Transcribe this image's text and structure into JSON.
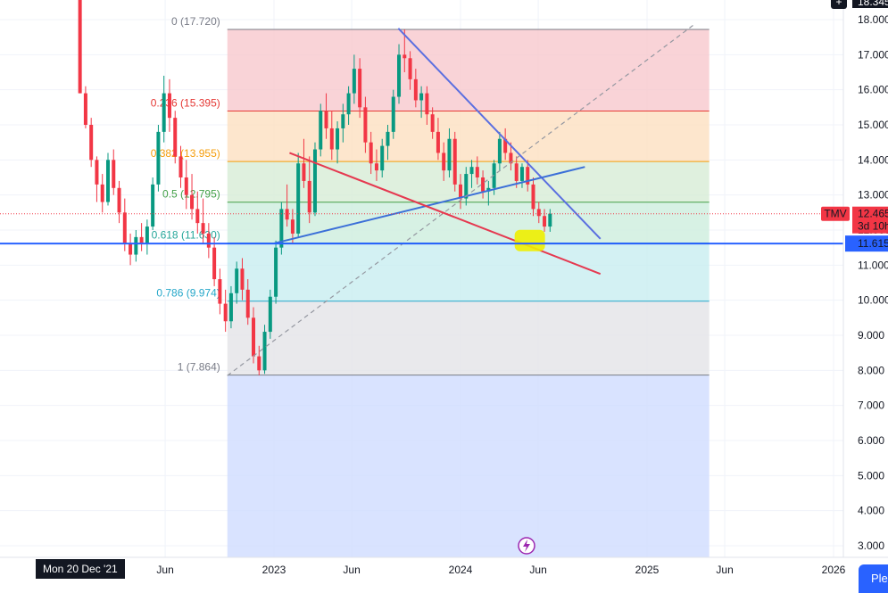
{
  "chart_data": {
    "type": "candlestick",
    "symbol": "TMV",
    "interval_badge": "3d 10h",
    "last_price": "12.465",
    "hline_price": "11.615",
    "top_price_badge": "18.345",
    "y_ticks": [
      "18.000",
      "17.000",
      "16.000",
      "15.000",
      "14.000",
      "13.000",
      "12.000",
      "11.000",
      "10.000",
      "9.000",
      "8.000",
      "7.000",
      "6.000",
      "5.000",
      "4.000",
      "3.000"
    ],
    "y_tick_values": [
      18,
      17,
      16,
      15,
      14,
      13,
      12,
      11,
      10,
      9,
      8,
      7,
      6,
      5,
      4,
      3
    ],
    "x_ticks": [
      "Jun",
      "2023",
      "Jun",
      "2024",
      "Jun",
      "2025",
      "Jun",
      "2026"
    ],
    "x_tick_values": [
      "2022-06",
      "2023-01",
      "2023-06",
      "2024-01",
      "2024-06",
      "2025-01",
      "2025-06",
      "2026-01"
    ],
    "date_badge": "Mon 20 Dec '21",
    "fib_levels": [
      {
        "label": "0 (17.720)",
        "ratio": 0,
        "price": 17.72,
        "color": "#787b86",
        "fill": "#f8c8cd"
      },
      {
        "label": "0.236 (15.395)",
        "ratio": 0.236,
        "price": 15.395,
        "color": "#e53935",
        "fill": "#fde0c0"
      },
      {
        "label": "0.382 (13.955)",
        "ratio": 0.382,
        "price": 13.955,
        "color": "#f59d0b",
        "fill": "#d7ecd6"
      },
      {
        "label": "0.5 (12.795)",
        "ratio": 0.5,
        "price": 12.795,
        "color": "#43a047",
        "fill": "#cdeedd"
      },
      {
        "label": "0.618 (11.630)",
        "ratio": 0.618,
        "price": 11.63,
        "color": "#26a69a",
        "fill": "#c8eef0"
      },
      {
        "label": "0.786 (9.974)",
        "ratio": 0.786,
        "price": 9.974,
        "color": "#26a7c9",
        "fill": "#e3e4e7"
      },
      {
        "label": "1 (7.864)",
        "ratio": 1,
        "price": 7.864,
        "color": "#787b86",
        "fill": "#cfdcff"
      }
    ],
    "fib_range": {
      "start": "2022-10",
      "end": "2025-05"
    },
    "trendlines": [
      {
        "name": "",
        "color": "#5b6fe0",
        "from": {
          "date": "2023-09",
          "price": 17.75
        },
        "to": {
          "date": "2024-10",
          "price": 11.75
        }
      },
      {
        "name": "",
        "color": "#3b6fd8",
        "from": {
          "date": "2023-01",
          "price": 11.62
        },
        "to": {
          "date": "2024-09",
          "price": 13.8
        }
      },
      {
        "name": "",
        "color": "#e53950",
        "from": {
          "date": "2023-02",
          "price": 14.2
        },
        "to": {
          "date": "2024-10",
          "price": 10.75
        }
      },
      {
        "name": "",
        "color": "#9598a1",
        "from": {
          "date": "2022-10",
          "price": 7.85
        },
        "to": {
          "date": "2025-04",
          "price": 17.85
        }
      }
    ],
    "highlight": {
      "date": "2024-05",
      "price": 11.65,
      "color": "#eeee00"
    },
    "candles": [
      [
        2021.96,
        18.6,
        18.6,
        15.9,
        15.9
      ],
      [
        2021.99,
        15.9,
        16.1,
        14.9,
        15.0
      ],
      [
        2022.02,
        15.0,
        15.2,
        13.8,
        14.0
      ],
      [
        2022.05,
        14.0,
        14.1,
        12.8,
        13.3
      ],
      [
        2022.08,
        13.3,
        13.6,
        12.5,
        12.8
      ],
      [
        2022.11,
        12.8,
        14.2,
        12.7,
        14.0
      ],
      [
        2022.14,
        14.0,
        14.3,
        13.0,
        13.2
      ],
      [
        2022.17,
        13.2,
        13.4,
        12.2,
        12.5
      ],
      [
        2022.2,
        12.5,
        12.9,
        11.4,
        11.6
      ],
      [
        2022.23,
        11.6,
        11.9,
        11.0,
        11.3
      ],
      [
        2022.26,
        11.3,
        12.0,
        11.1,
        11.8
      ],
      [
        2022.29,
        11.8,
        12.2,
        11.4,
        11.6
      ],
      [
        2022.32,
        11.6,
        12.3,
        11.3,
        12.1
      ],
      [
        2022.35,
        12.1,
        13.5,
        12.0,
        13.3
      ],
      [
        2022.38,
        13.3,
        15.0,
        13.1,
        14.8
      ],
      [
        2022.41,
        14.8,
        16.4,
        14.5,
        15.9
      ],
      [
        2022.44,
        15.9,
        16.3,
        14.8,
        15.2
      ],
      [
        2022.47,
        15.2,
        15.4,
        13.9,
        14.1
      ],
      [
        2022.5,
        14.1,
        14.4,
        13.2,
        13.5
      ],
      [
        2022.53,
        13.5,
        14.0,
        12.6,
        13.0
      ],
      [
        2022.56,
        13.0,
        13.6,
        12.3,
        12.6
      ],
      [
        2022.59,
        12.6,
        13.1,
        11.9,
        12.2
      ],
      [
        2022.62,
        12.2,
        12.9,
        11.6,
        11.9
      ],
      [
        2022.65,
        11.9,
        12.2,
        11.2,
        11.5
      ],
      [
        2022.68,
        11.5,
        11.8,
        10.4,
        10.6
      ],
      [
        2022.71,
        10.6,
        10.9,
        9.6,
        9.9
      ],
      [
        2022.74,
        9.9,
        10.3,
        9.1,
        9.4
      ],
      [
        2022.77,
        9.4,
        10.4,
        9.2,
        10.2
      ],
      [
        2022.8,
        10.2,
        11.1,
        9.9,
        10.9
      ],
      [
        2022.83,
        10.9,
        11.2,
        10.0,
        10.3
      ],
      [
        2022.86,
        10.3,
        10.6,
        9.3,
        9.5
      ],
      [
        2022.89,
        9.5,
        9.8,
        8.2,
        8.4
      ],
      [
        2022.92,
        8.4,
        8.7,
        7.86,
        8.0
      ],
      [
        2022.95,
        8.0,
        9.3,
        7.9,
        9.1
      ],
      [
        2022.98,
        9.1,
        10.3,
        8.9,
        10.1
      ],
      [
        2023.01,
        10.1,
        11.7,
        9.9,
        11.5
      ],
      [
        2023.04,
        11.5,
        12.8,
        11.3,
        12.6
      ],
      [
        2023.07,
        12.6,
        13.3,
        12.1,
        12.3
      ],
      [
        2023.1,
        12.3,
        12.6,
        11.6,
        11.9
      ],
      [
        2023.13,
        11.9,
        14.2,
        11.8,
        13.9
      ],
      [
        2023.16,
        13.9,
        14.6,
        13.2,
        13.4
      ],
      [
        2023.19,
        13.4,
        14.1,
        12.2,
        12.5
      ],
      [
        2023.22,
        12.5,
        14.5,
        12.4,
        14.3
      ],
      [
        2023.25,
        14.3,
        15.6,
        14.1,
        15.4
      ],
      [
        2023.28,
        15.4,
        15.9,
        14.6,
        14.9
      ],
      [
        2023.31,
        14.9,
        15.4,
        14.0,
        14.3
      ],
      [
        2023.34,
        14.3,
        15.1,
        13.9,
        14.9
      ],
      [
        2023.37,
        14.9,
        15.6,
        14.5,
        15.3
      ],
      [
        2023.4,
        15.3,
        16.1,
        15.0,
        15.9
      ],
      [
        2023.43,
        15.9,
        17.0,
        15.6,
        16.6
      ],
      [
        2023.46,
        16.6,
        16.9,
        15.2,
        15.5
      ],
      [
        2023.49,
        15.5,
        15.8,
        14.2,
        14.5
      ],
      [
        2023.52,
        14.5,
        14.8,
        13.6,
        13.9
      ],
      [
        2023.55,
        13.9,
        14.3,
        13.4,
        13.7
      ],
      [
        2023.58,
        13.7,
        14.6,
        13.5,
        14.4
      ],
      [
        2023.61,
        14.4,
        15.0,
        14.0,
        14.8
      ],
      [
        2023.64,
        14.8,
        16.0,
        14.6,
        15.8
      ],
      [
        2023.67,
        15.8,
        17.3,
        15.6,
        17.0
      ],
      [
        2023.7,
        17.0,
        17.72,
        16.5,
        16.9
      ],
      [
        2023.73,
        16.9,
        17.1,
        16.0,
        16.3
      ],
      [
        2023.76,
        16.3,
        16.6,
        15.5,
        15.7
      ],
      [
        2023.79,
        15.7,
        16.1,
        15.2,
        15.9
      ],
      [
        2023.82,
        15.9,
        16.1,
        15.0,
        15.3
      ],
      [
        2023.85,
        15.3,
        15.5,
        14.6,
        14.8
      ],
      [
        2023.88,
        14.8,
        15.2,
        14.0,
        14.2
      ],
      [
        2023.91,
        14.2,
        14.5,
        13.4,
        13.7
      ],
      [
        2023.94,
        13.7,
        14.9,
        13.5,
        14.6
      ],
      [
        2023.97,
        14.6,
        14.8,
        13.1,
        13.3
      ],
      [
        2024.0,
        13.3,
        13.6,
        12.6,
        12.9
      ],
      [
        2024.03,
        12.9,
        13.8,
        12.7,
        13.6
      ],
      [
        2024.06,
        13.6,
        14.0,
        13.2,
        13.8
      ],
      [
        2024.09,
        13.8,
        14.1,
        13.3,
        13.5
      ],
      [
        2024.12,
        13.5,
        13.7,
        12.9,
        13.1
      ],
      [
        2024.15,
        13.1,
        13.4,
        12.7,
        13.2
      ],
      [
        2024.18,
        13.2,
        14.0,
        13.0,
        13.9
      ],
      [
        2024.21,
        13.9,
        14.8,
        13.7,
        14.6
      ],
      [
        2024.24,
        14.6,
        14.9,
        14.0,
        14.2
      ],
      [
        2024.27,
        14.2,
        14.5,
        13.7,
        13.9
      ],
      [
        2024.3,
        13.9,
        14.1,
        13.2,
        13.4
      ],
      [
        2024.33,
        13.4,
        13.9,
        13.2,
        13.8
      ],
      [
        2024.36,
        13.8,
        14.0,
        13.1,
        13.3
      ],
      [
        2024.39,
        13.3,
        13.5,
        12.4,
        12.6
      ],
      [
        2024.42,
        12.6,
        12.8,
        12.2,
        12.4
      ],
      [
        2024.45,
        12.4,
        12.6,
        11.95,
        12.1
      ],
      [
        2024.48,
        12.1,
        12.6,
        11.95,
        12.465
      ]
    ]
  }
}
